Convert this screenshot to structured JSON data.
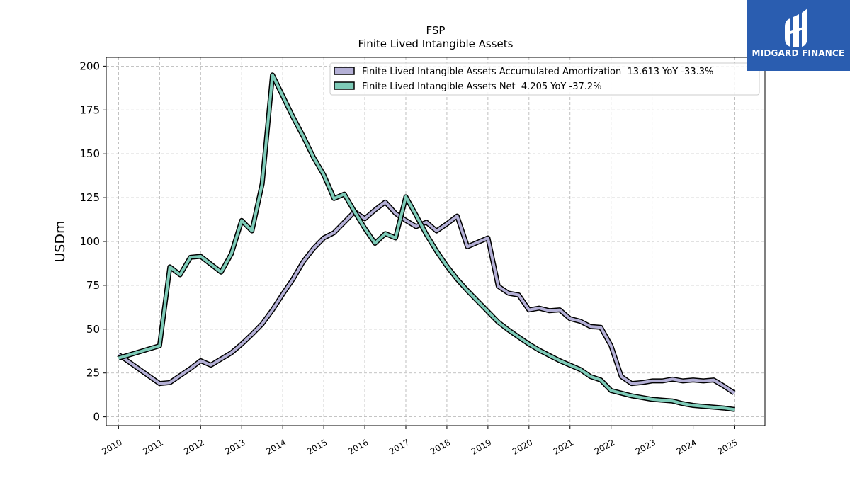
{
  "logo": {
    "text": "MIDGARD FINANCE"
  },
  "chart_data": {
    "type": "line",
    "title": "FSP",
    "subtitle": "Finite Lived Intangible Assets",
    "xlabel": "",
    "ylabel": "USDm",
    "xlim": [
      2009.7,
      2025.75
    ],
    "ylim": [
      -5,
      205
    ],
    "xticks": [
      2010,
      2011,
      2012,
      2013,
      2014,
      2015,
      2016,
      2017,
      2018,
      2019,
      2020,
      2021,
      2022,
      2023,
      2024,
      2025
    ],
    "yticks": [
      0,
      25,
      50,
      75,
      100,
      125,
      150,
      175,
      200
    ],
    "grid": true,
    "legend_position": "top-right",
    "series": [
      {
        "name": "Finite Lived Intangible Assets Accumulated Amortization  13.613 YoY -33.3%",
        "color": "#b4b0d6",
        "points": [
          [
            2010.0,
            35.5
          ],
          [
            2011.0,
            19.0
          ],
          [
            2011.25,
            19.5
          ],
          [
            2011.5,
            23.5
          ],
          [
            2011.75,
            27.5
          ],
          [
            2012.0,
            32.0
          ],
          [
            2012.25,
            29.5
          ],
          [
            2012.5,
            33.0
          ],
          [
            2012.75,
            36.5
          ],
          [
            2013.0,
            41.5
          ],
          [
            2013.25,
            47.0
          ],
          [
            2013.5,
            53.0
          ],
          [
            2013.75,
            61.0
          ],
          [
            2014.0,
            70.0
          ],
          [
            2014.25,
            78.5
          ],
          [
            2014.5,
            88.5
          ],
          [
            2014.75,
            96.0
          ],
          [
            2015.0,
            102.0
          ],
          [
            2015.25,
            105.0
          ],
          [
            2015.5,
            111.0
          ],
          [
            2015.75,
            117.0
          ],
          [
            2016.0,
            113.0
          ],
          [
            2016.25,
            118.0
          ],
          [
            2016.5,
            122.5
          ],
          [
            2016.75,
            116.0
          ],
          [
            2017.0,
            112.0
          ],
          [
            2017.25,
            108.5
          ],
          [
            2017.5,
            111.0
          ],
          [
            2017.75,
            106.0
          ],
          [
            2018.0,
            110.0
          ],
          [
            2018.25,
            114.5
          ],
          [
            2018.5,
            97.0
          ],
          [
            2018.75,
            99.5
          ],
          [
            2019.0,
            102.0
          ],
          [
            2019.25,
            74.5
          ],
          [
            2019.5,
            70.5
          ],
          [
            2019.75,
            69.5
          ],
          [
            2020.0,
            61.0
          ],
          [
            2020.25,
            62.0
          ],
          [
            2020.5,
            60.5
          ],
          [
            2020.75,
            61.0
          ],
          [
            2021.0,
            56.0
          ],
          [
            2021.25,
            54.5
          ],
          [
            2021.5,
            51.5
          ],
          [
            2021.75,
            51.0
          ],
          [
            2022.0,
            40.5
          ],
          [
            2022.25,
            23.0
          ],
          [
            2022.5,
            19.0
          ],
          [
            2022.75,
            19.5
          ],
          [
            2023.0,
            20.5
          ],
          [
            2023.25,
            20.5
          ],
          [
            2023.5,
            21.5
          ],
          [
            2023.75,
            20.5
          ],
          [
            2024.0,
            21.0
          ],
          [
            2024.25,
            20.5
          ],
          [
            2024.5,
            21.0
          ],
          [
            2024.75,
            17.5
          ],
          [
            2025.0,
            13.6
          ]
        ]
      },
      {
        "name": "Finite Lived Intangible Assets Net  4.205 YoY -37.2%",
        "color": "#7ecbb8",
        "points": [
          [
            2010.0,
            33.5
          ],
          [
            2011.0,
            40.5
          ],
          [
            2011.25,
            85.5
          ],
          [
            2011.5,
            81.0
          ],
          [
            2011.75,
            91.0
          ],
          [
            2012.0,
            91.5
          ],
          [
            2012.25,
            87.0
          ],
          [
            2012.5,
            82.5
          ],
          [
            2012.75,
            93.0
          ],
          [
            2013.0,
            112.0
          ],
          [
            2013.25,
            106.0
          ],
          [
            2013.5,
            133.0
          ],
          [
            2013.75,
            195.0
          ],
          [
            2014.0,
            183.0
          ],
          [
            2014.25,
            171.0
          ],
          [
            2014.5,
            160.0
          ],
          [
            2014.75,
            148.0
          ],
          [
            2015.0,
            138.0
          ],
          [
            2015.25,
            124.5
          ],
          [
            2015.5,
            127.0
          ],
          [
            2015.75,
            117.0
          ],
          [
            2016.0,
            107.5
          ],
          [
            2016.25,
            99.0
          ],
          [
            2016.5,
            104.5
          ],
          [
            2016.75,
            102.0
          ],
          [
            2017.0,
            125.5
          ],
          [
            2017.25,
            115.0
          ],
          [
            2017.5,
            104.0
          ],
          [
            2017.75,
            94.5
          ],
          [
            2018.0,
            86.0
          ],
          [
            2018.25,
            78.5
          ],
          [
            2018.5,
            72.0
          ],
          [
            2018.75,
            66.0
          ],
          [
            2019.0,
            60.0
          ],
          [
            2019.25,
            54.0
          ],
          [
            2019.5,
            49.5
          ],
          [
            2019.75,
            45.5
          ],
          [
            2020.0,
            41.5
          ],
          [
            2020.25,
            38.0
          ],
          [
            2020.5,
            35.0
          ],
          [
            2020.75,
            32.0
          ],
          [
            2021.0,
            29.5
          ],
          [
            2021.25,
            27.0
          ],
          [
            2021.5,
            23.0
          ],
          [
            2021.75,
            21.0
          ],
          [
            2022.0,
            15.0
          ],
          [
            2022.25,
            13.5
          ],
          [
            2022.5,
            12.0
          ],
          [
            2022.75,
            11.0
          ],
          [
            2023.0,
            10.0
          ],
          [
            2023.25,
            9.5
          ],
          [
            2023.5,
            9.0
          ],
          [
            2023.75,
            7.5
          ],
          [
            2024.0,
            6.5
          ],
          [
            2024.25,
            6.0
          ],
          [
            2024.5,
            5.5
          ],
          [
            2024.75,
            5.0
          ],
          [
            2025.0,
            4.2
          ]
        ]
      }
    ]
  }
}
